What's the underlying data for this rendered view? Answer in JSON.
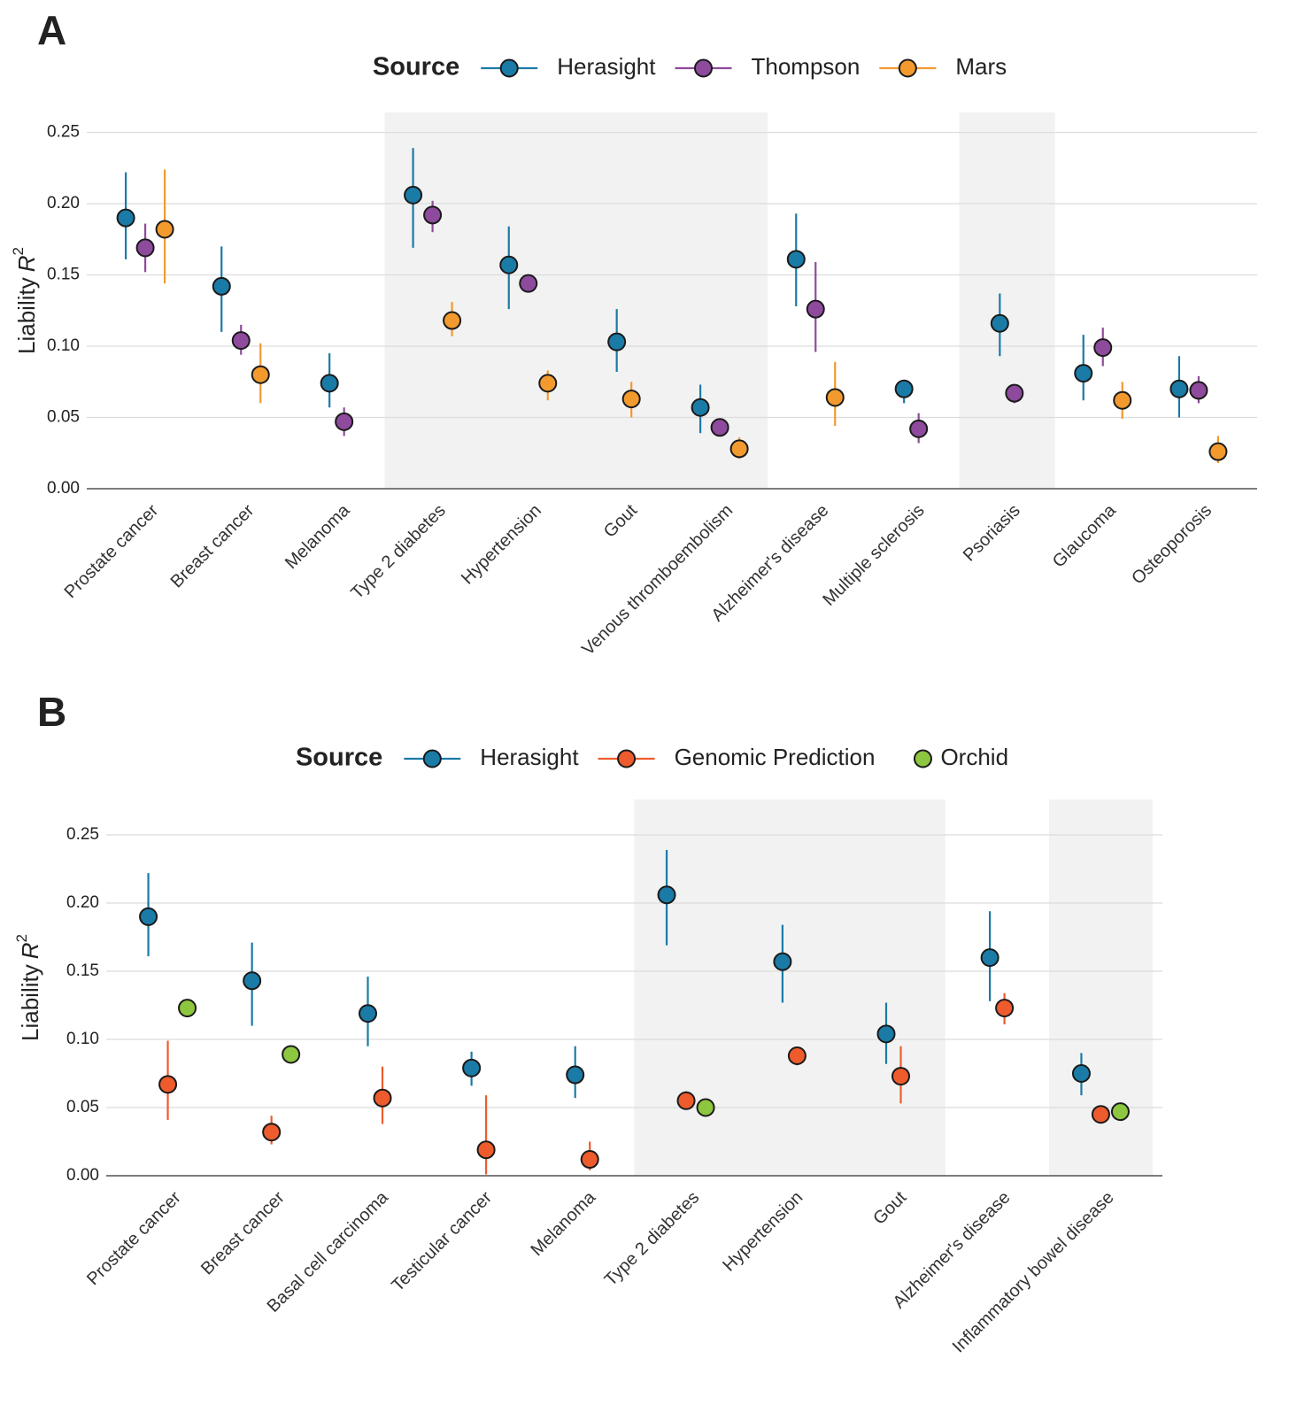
{
  "chart_data": [
    {
      "type": "pointrange",
      "panel_label": "A",
      "legend_title": "Source",
      "y_label": {
        "text": "Liability",
        "variable": "R",
        "exponent": "2"
      },
      "categories": [
        "Prostate cancer",
        "Breast cancer",
        "Melanoma",
        "Type 2 diabetes",
        "Hypertension",
        "Gout",
        "Venous thromboembolism",
        "Alzheimer's disease",
        "Multiple sclerosis",
        "Psoriasis",
        "Glaucoma",
        "Osteoporosis"
      ],
      "shaded_categories": [
        [
          3,
          6
        ],
        [
          9,
          9
        ]
      ],
      "ylim": [
        0,
        0.264
      ],
      "yticks": [
        {
          "value": 0,
          "label": "0.00"
        },
        0.05,
        {
          "value": 0.1,
          "label": "0.10"
        },
        0.15,
        {
          "value": 0.2,
          "label": "0.20"
        },
        0.25
      ],
      "grid": true,
      "series": [
        {
          "name": "Herasight",
          "color": "#1a7ba6",
          "values": [
            0.19,
            0.142,
            0.074,
            0.206,
            0.157,
            0.103,
            0.057,
            0.161,
            0.07,
            0.116,
            0.081,
            0.07
          ],
          "lower": [
            0.161,
            0.11,
            0.057,
            0.169,
            0.126,
            0.082,
            0.039,
            0.128,
            0.06,
            0.093,
            0.062,
            0.05
          ],
          "upper": [
            0.222,
            0.17,
            0.095,
            0.239,
            0.184,
            0.126,
            0.073,
            0.193,
            0.076,
            0.137,
            0.108,
            0.093
          ]
        },
        {
          "name": "Thompson",
          "color": "#8e4a9c",
          "values": [
            0.169,
            0.104,
            0.047,
            0.192,
            0.144,
            null,
            0.043,
            0.126,
            0.042,
            0.067,
            0.099,
            0.069
          ],
          "lower": [
            0.152,
            0.094,
            0.037,
            0.18,
            0.142,
            null,
            0.037,
            0.096,
            0.032,
            0.06,
            0.086,
            0.06
          ],
          "upper": [
            0.186,
            0.115,
            0.057,
            0.202,
            0.147,
            null,
            0.048,
            0.159,
            0.053,
            0.073,
            0.113,
            0.079
          ]
        },
        {
          "name": "Mars",
          "color": "#f29a2e",
          "values": [
            0.182,
            0.08,
            null,
            0.118,
            0.074,
            0.063,
            0.028,
            0.064,
            null,
            null,
            0.062,
            0.026
          ],
          "lower": [
            0.144,
            0.06,
            null,
            0.107,
            0.062,
            0.05,
            0.021,
            0.044,
            null,
            null,
            0.049,
            0.018
          ],
          "upper": [
            0.224,
            0.102,
            null,
            0.131,
            0.083,
            0.075,
            0.036,
            0.089,
            null,
            null,
            0.075,
            0.037
          ]
        }
      ]
    },
    {
      "type": "pointrange",
      "panel_label": "B",
      "legend_title": "Source",
      "y_label": {
        "text": "Liability",
        "variable": "R",
        "exponent": "2"
      },
      "categories": [
        "Prostate cancer",
        "Breast cancer",
        "Basal cell carcinoma",
        "Testicular cancer",
        "Melanoma",
        "Type 2 diabetes",
        "Hypertension",
        "Gout",
        "Alzheimer's disease",
        "Inflammatory bowel disease"
      ],
      "shaded_categories": [
        [
          5,
          7
        ],
        [
          9,
          9
        ]
      ],
      "ylim": [
        0,
        0.276
      ],
      "yticks": [
        {
          "value": 0,
          "label": "0.00"
        },
        0.05,
        {
          "value": 0.1,
          "label": "0.10"
        },
        0.15,
        {
          "value": 0.2,
          "label": "0.20"
        },
        0.25
      ],
      "grid": true,
      "series": [
        {
          "name": "Herasight",
          "color": "#1a7ba6",
          "values": [
            0.19,
            0.143,
            0.119,
            0.079,
            0.074,
            0.206,
            0.157,
            0.104,
            0.16,
            0.075
          ],
          "lower": [
            0.161,
            0.11,
            0.095,
            0.066,
            0.057,
            0.169,
            0.127,
            0.082,
            0.128,
            0.059
          ],
          "upper": [
            0.222,
            0.171,
            0.146,
            0.091,
            0.095,
            0.239,
            0.184,
            0.127,
            0.194,
            0.09
          ]
        },
        {
          "name": "Genomic Prediction",
          "color": "#ee5b2c",
          "values": [
            0.067,
            0.032,
            0.057,
            0.019,
            0.012,
            0.055,
            0.088,
            0.073,
            0.123,
            0.045
          ],
          "lower": [
            0.041,
            0.023,
            0.038,
            0.001,
            0.004,
            0.049,
            0.081,
            0.053,
            0.111,
            null
          ],
          "upper": [
            0.099,
            0.044,
            0.08,
            0.059,
            0.025,
            0.062,
            0.094,
            0.095,
            0.134,
            null
          ]
        },
        {
          "name": "Orchid",
          "color": "#8dc63f",
          "values": [
            0.123,
            0.089,
            null,
            null,
            null,
            0.05,
            null,
            null,
            null,
            0.047
          ]
        }
      ]
    }
  ]
}
